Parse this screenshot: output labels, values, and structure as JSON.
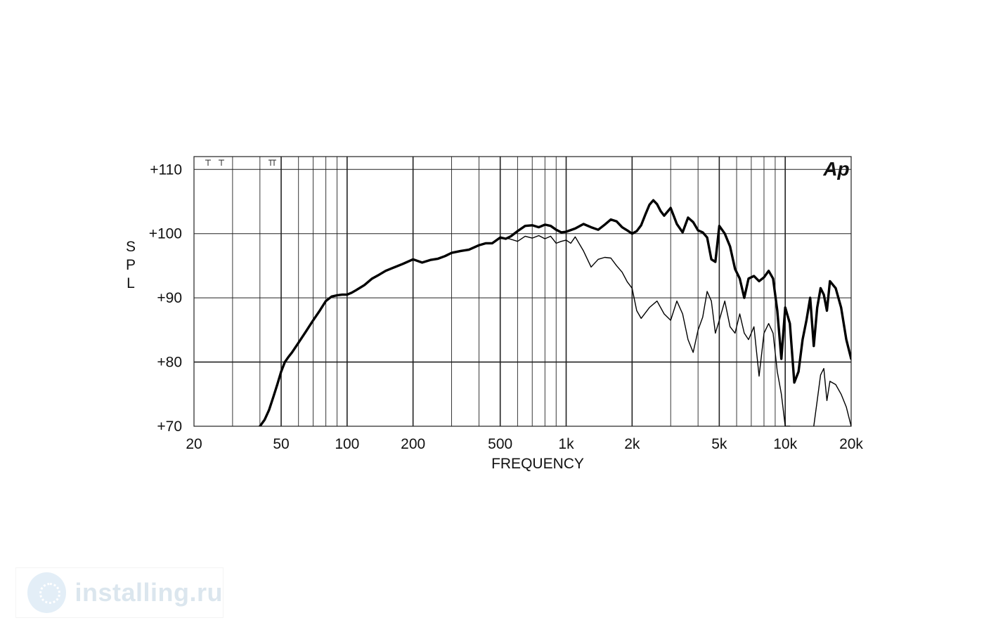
{
  "chart_data": {
    "type": "line",
    "title": "",
    "xlabel": "FREQUENCY",
    "ylabel": "SPL",
    "x_scale": "log",
    "xlim": [
      20,
      20000
    ],
    "ylim": [
      70,
      112
    ],
    "x_ticks": [
      {
        "value": 20,
        "label": "20"
      },
      {
        "value": 50,
        "label": "50"
      },
      {
        "value": 100,
        "label": "100"
      },
      {
        "value": 200,
        "label": "200"
      },
      {
        "value": 500,
        "label": "500"
      },
      {
        "value": 1000,
        "label": "1k"
      },
      {
        "value": 2000,
        "label": "2k"
      },
      {
        "value": 5000,
        "label": "5k"
      },
      {
        "value": 10000,
        "label": "10k"
      },
      {
        "value": 20000,
        "label": "20k"
      }
    ],
    "y_ticks": [
      {
        "value": 70,
        "label": "+70"
      },
      {
        "value": 80,
        "label": "+80"
      },
      {
        "value": 90,
        "label": "+90"
      },
      {
        "value": 100,
        "label": "+100"
      },
      {
        "value": 110,
        "label": "+110"
      }
    ],
    "grid": true,
    "logo": "Ap",
    "series": [
      {
        "style": "thick",
        "x": [
          40,
          42,
          44,
          46,
          48,
          50,
          52,
          54,
          56,
          60,
          65,
          70,
          75,
          80,
          85,
          90,
          95,
          100,
          105,
          110,
          120,
          130,
          140,
          150,
          160,
          180,
          200,
          220,
          240,
          260,
          280,
          300,
          330,
          360,
          400,
          430,
          460,
          500,
          530,
          560,
          600,
          650,
          700,
          750,
          800,
          850,
          900,
          950,
          1000,
          1100,
          1200,
          1300,
          1400,
          1500,
          1600,
          1700,
          1800,
          1900,
          2000,
          2100,
          2200,
          2300,
          2400,
          2500,
          2600,
          2700,
          2800,
          3000,
          3200,
          3400,
          3600,
          3800,
          4000,
          4200,
          4400,
          4600,
          4800,
          5000,
          5300,
          5600,
          5900,
          6200,
          6500,
          6800,
          7200,
          7600,
          8000,
          8400,
          8800,
          9200,
          9600,
          10000,
          10500,
          11000,
          11500,
          12000,
          12500,
          13000,
          13500,
          14000,
          14500,
          15000,
          15500,
          16000,
          17000,
          18000,
          19000,
          20000
        ],
        "y": [
          70,
          71,
          72.5,
          74.5,
          76.5,
          78.5,
          80,
          80.8,
          81.5,
          83,
          84.8,
          86.5,
          88,
          89.5,
          90.2,
          90.4,
          90.5,
          90.5,
          90.8,
          91.2,
          92,
          93,
          93.6,
          94.2,
          94.6,
          95.3,
          96,
          95.5,
          95.9,
          96.1,
          96.5,
          97,
          97.3,
          97.5,
          98.2,
          98.5,
          98.5,
          99.4,
          99.2,
          99.6,
          100.4,
          101.2,
          101.3,
          101,
          101.4,
          101.2,
          100.6,
          100.2,
          100.3,
          100.8,
          101.5,
          101,
          100.6,
          101.4,
          102.2,
          101.9,
          101,
          100.5,
          100,
          100.4,
          101.3,
          103,
          104.5,
          105.2,
          104.6,
          103.5,
          102.8,
          104,
          101.5,
          100.2,
          102.5,
          101.8,
          100.5,
          100.2,
          99.4,
          96,
          95.6,
          101.2,
          100,
          98,
          94.5,
          93,
          90,
          93,
          93.4,
          92.6,
          93.2,
          94.2,
          93,
          88,
          80.5,
          88.5,
          86,
          76.8,
          78.5,
          83.5,
          86.5,
          90,
          82.5,
          88.5,
          91.5,
          90.5,
          88,
          92.6,
          91.5,
          88.5,
          83.5,
          80.5
        ]
      },
      {
        "style": "thin",
        "x": [
          500,
          550,
          600,
          650,
          700,
          750,
          800,
          850,
          900,
          950,
          1000,
          1050,
          1100,
          1200,
          1300,
          1400,
          1500,
          1600,
          1700,
          1800,
          1900,
          2000,
          2100,
          2200,
          2400,
          2600,
          2800,
          3000,
          3200,
          3400,
          3600,
          3800,
          4000,
          4200,
          4400,
          4600,
          4800,
          5000,
          5300,
          5600,
          5900,
          6200,
          6500,
          6800,
          7200,
          7600,
          8000,
          8400,
          8800,
          9200,
          9600,
          10000,
          10500,
          11000,
          12000,
          13000,
          13500,
          14000,
          14500,
          15000,
          15500,
          16000,
          17000,
          18000,
          19000,
          20000
        ],
        "y": [
          99.4,
          99.2,
          98.8,
          99.6,
          99.3,
          99.7,
          99.2,
          99.6,
          98.5,
          98.8,
          99,
          98.5,
          99.5,
          97.3,
          94.8,
          96,
          96.3,
          96.2,
          95,
          94,
          92.5,
          91.5,
          88,
          86.8,
          88.5,
          89.5,
          87.5,
          86.5,
          89.5,
          87.5,
          83.5,
          81.5,
          85,
          87,
          91,
          89.5,
          84.5,
          86.5,
          89.5,
          85.5,
          84.5,
          87.5,
          84.5,
          83.5,
          85.5,
          77.8,
          84.5,
          86,
          84.5,
          78.5,
          75,
          70,
          70,
          66,
          64,
          66,
          70,
          74,
          78,
          79,
          74,
          77,
          76.5,
          75,
          73,
          70
        ]
      }
    ]
  }
}
